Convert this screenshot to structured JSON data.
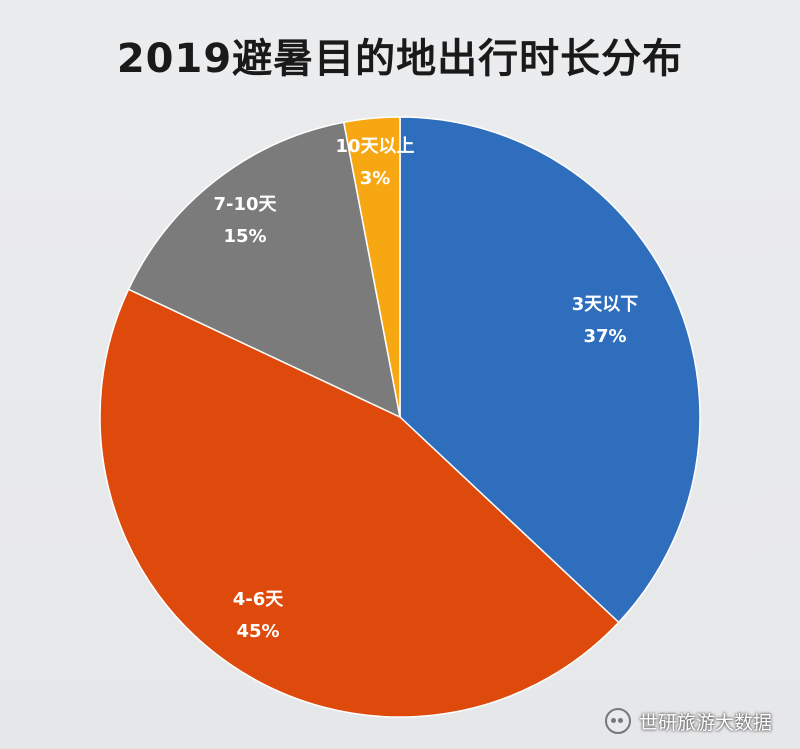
{
  "chart_data": {
    "type": "pie",
    "title": "2019避暑目的地出行时长分布",
    "slices": [
      {
        "label": "3天以下",
        "value": 37,
        "pct_text": "37%",
        "color": "#2f6dbd",
        "label_color": "#ffffff"
      },
      {
        "label": "4-6天",
        "value": 45,
        "pct_text": "45%",
        "color": "#de4a0c",
        "label_color": "#ffffff"
      },
      {
        "label": "7-10天",
        "value": 15,
        "pct_text": "15%",
        "color": "#7b7b7b",
        "label_color": "#ffffff"
      },
      {
        "label": "10天以上",
        "value": 3,
        "pct_text": "3%",
        "color": "#f7a712",
        "label_color": "#ffffff"
      }
    ]
  },
  "watermark": {
    "text": "世研旅游大数据",
    "icon": "wechat-icon"
  }
}
